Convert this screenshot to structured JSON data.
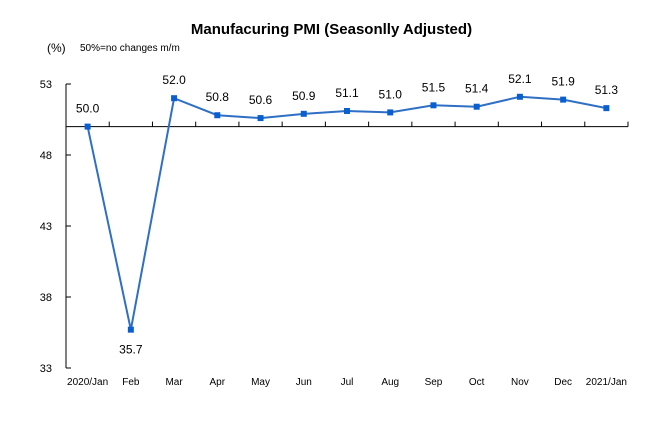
{
  "chart_data": {
    "type": "line",
    "title": "Manufacuring PMI (Seasonlly Adjusted)",
    "unit_label": "(%)",
    "note": "50%=no changes  m/m",
    "xlabel": "",
    "ylabel": "",
    "categories": [
      "2020/Jan",
      "Feb",
      "Mar",
      "Apr",
      "May",
      "Jun",
      "Jul",
      "Aug",
      "Sep",
      "Oct",
      "Nov",
      "Dec",
      "2021/Jan"
    ],
    "series": [
      {
        "name": "PMI",
        "color": "#2f6fc4",
        "values": [
          50.0,
          35.7,
          52.0,
          50.8,
          50.6,
          50.9,
          51.1,
          51.0,
          51.5,
          51.4,
          52.1,
          51.9,
          51.3
        ]
      }
    ],
    "data_labels": [
      "50.0",
      "35.7",
      "52.0",
      "50.8",
      "50.6",
      "50.9",
      "51.1",
      "51.0",
      "51.5",
      "51.4",
      "52.1",
      "51.9",
      "51.3"
    ],
    "yticks": [
      53,
      48,
      43,
      38,
      33
    ],
    "ylim": [
      33,
      53
    ],
    "x_axis_crosses_at": 50,
    "grid": false,
    "legend": "none"
  }
}
